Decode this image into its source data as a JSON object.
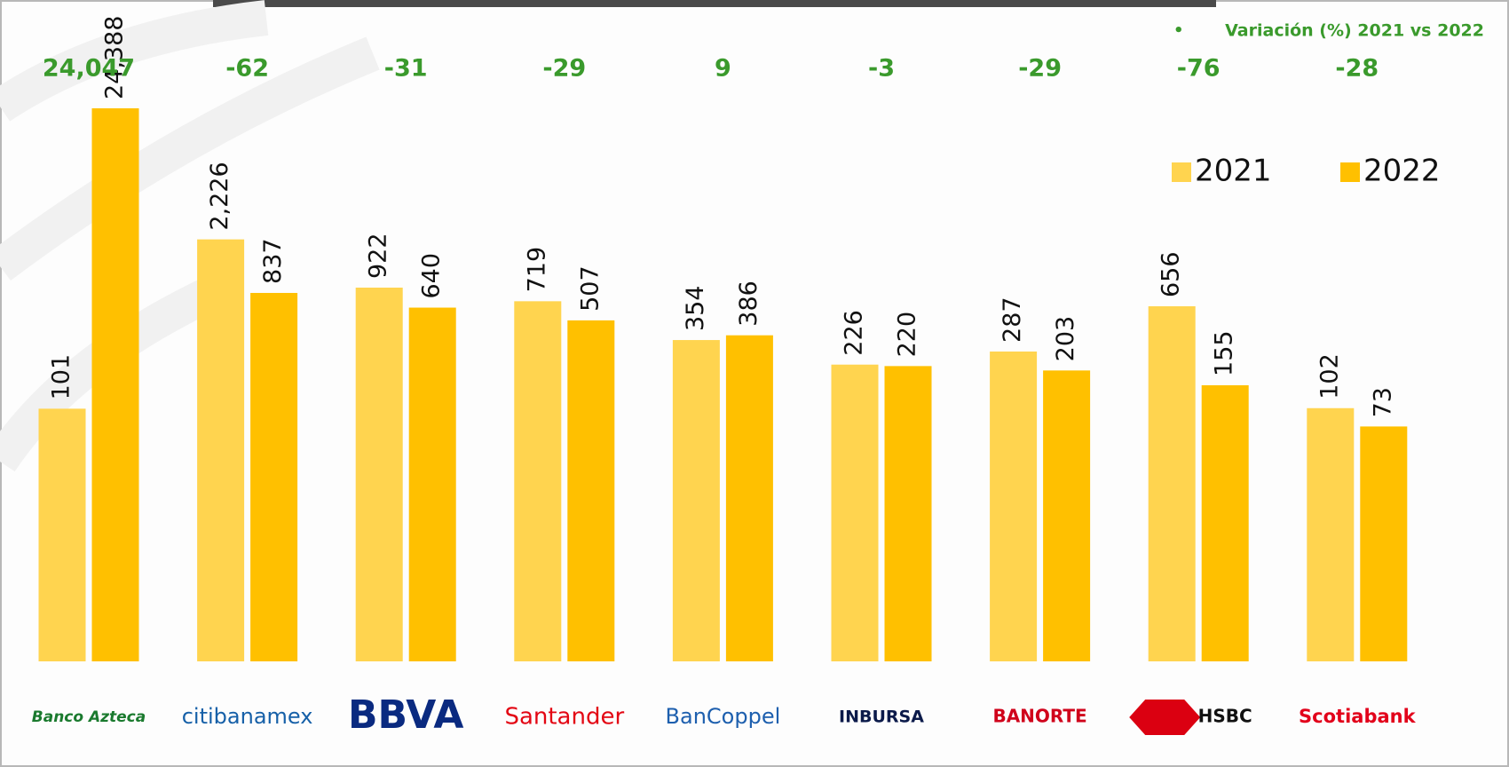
{
  "chart_data": {
    "type": "bar",
    "categories": [
      "Banco Azteca",
      "citibanamex",
      "BBVA",
      "Santander",
      "BanCoppel",
      "INBURSA",
      "BANORTE",
      "HSBC",
      "Scotiabank"
    ],
    "series": [
      {
        "name": "2021",
        "color": "#FFD44F",
        "values": [
          101,
          2226,
          922,
          719,
          354,
          226,
          287,
          656,
          102
        ],
        "value_labels": [
          "101",
          "2,226",
          "922",
          "719",
          "354",
          "226",
          "287",
          "656",
          "102"
        ]
      },
      {
        "name": "2022",
        "color": "#FFC000",
        "values": [
          24388,
          837,
          640,
          507,
          386,
          220,
          203,
          155,
          73
        ],
        "value_labels": [
          "24,388",
          "837",
          "640",
          "507",
          "386",
          "220",
          "203",
          "155",
          "73"
        ]
      }
    ],
    "variation": {
      "label": "Variación (%) 2021 vs 2022",
      "values": [
        24047,
        -62,
        -31,
        -29,
        9,
        -3,
        -29,
        -76,
        -28
      ],
      "value_labels": [
        "24,047",
        "-62",
        "-31",
        "-29",
        "9",
        "-3",
        "-29",
        "-76",
        "-28"
      ],
      "color": "#3A9A2C"
    },
    "log_scale": true,
    "ylim": [
      1,
      100000
    ],
    "legend": "top-right"
  }
}
